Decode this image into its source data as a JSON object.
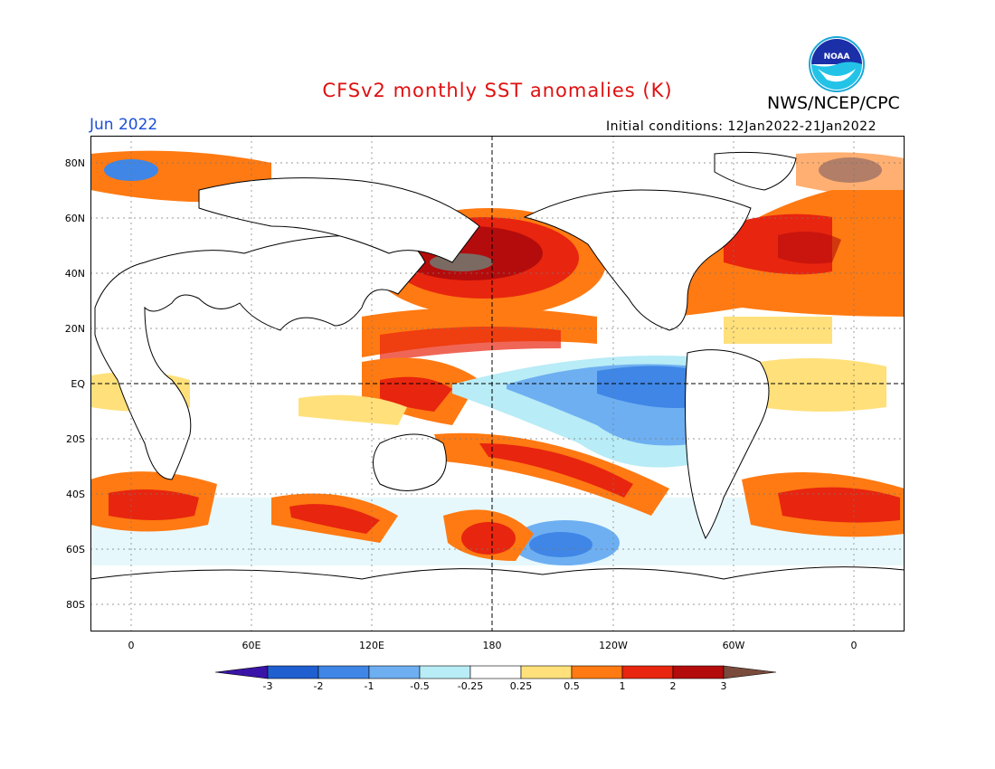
{
  "header": {
    "title": "CFSv2 monthly SST anomalies (K)",
    "agency": "NWS/NCEP/CPC",
    "month": "Jun 2022",
    "initial_conditions": "Initial conditions: 12Jan2022-21Jan2022",
    "logo_text": "NOAA"
  },
  "axes": {
    "lat_labels": [
      "80N",
      "60N",
      "40N",
      "20N",
      "EQ",
      "20S",
      "40S",
      "60S",
      "80S"
    ],
    "lon_labels": [
      "0",
      "60E",
      "120E",
      "180",
      "120W",
      "60W",
      "0"
    ]
  },
  "colorbar": {
    "labels": [
      "-3",
      "-2",
      "-1",
      "-0.5",
      "-0.25",
      "0.25",
      "0.5",
      "1",
      "2",
      "3"
    ],
    "colors": [
      "#3a14a8",
      "#1f5fd0",
      "#3f86e6",
      "#6eaff2",
      "#b8ecf6",
      "#ffffff",
      "#ffe07a",
      "#ff7a12",
      "#e8250f",
      "#b40c0c",
      "#7a4b3c"
    ]
  },
  "colors": {
    "title": "#e01010",
    "month": "#1a4fd6"
  }
}
